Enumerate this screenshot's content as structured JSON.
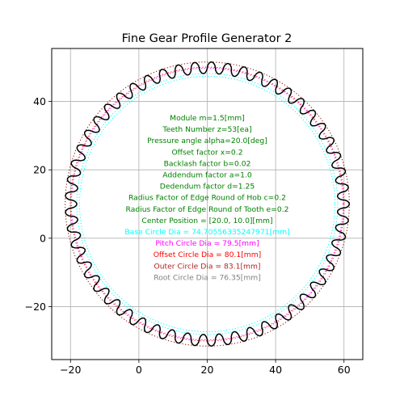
{
  "chart_data": {
    "type": "line",
    "title": "Fine Gear Profile Generator 2",
    "xlabel": "",
    "ylabel": "",
    "xlim": [
      -25.5,
      65.5
    ],
    "ylim": [
      -35.5,
      55.5
    ],
    "grid": true,
    "x_ticks": [
      -20,
      0,
      20,
      40,
      60
    ],
    "y_ticks": [
      -20,
      0,
      20,
      40
    ],
    "x_tick_labels": [
      "−20",
      "0",
      "20",
      "40",
      "60"
    ],
    "y_tick_labels": [
      "−20",
      "0",
      "20",
      "40"
    ],
    "gear": {
      "center": [
        20.0,
        10.0
      ],
      "module": 1.5,
      "teeth": 53,
      "base_circle_dia": 74.70556335247971,
      "pitch_circle_dia": 79.5,
      "offset_circle_dia": 80.1,
      "outer_circle_dia": 83.1,
      "root_circle_dia": 76.35
    },
    "circles": [
      {
        "name": "base",
        "dia": 74.70556335247971,
        "color": "#00ffff",
        "style": "dotted"
      },
      {
        "name": "pitch",
        "dia": 79.5,
        "color": "#ff00ff",
        "style": "dotted"
      },
      {
        "name": "offset",
        "dia": 80.1,
        "color": "#ff0000",
        "style": "dotted"
      },
      {
        "name": "outer",
        "dia": 83.1,
        "color": "#8b0000",
        "style": "dotted"
      },
      {
        "name": "root",
        "dia": 76.35,
        "color": "#00ffff",
        "style": "dotted"
      }
    ],
    "profile_color": "#000000",
    "annotations": [
      {
        "text": "Module m=1.5[mm]",
        "color": "#008000"
      },
      {
        "text": "Teeth Number z=53[ea]",
        "color": "#008000"
      },
      {
        "text": "Pressure angle alpha=20.0[deg]",
        "color": "#008000"
      },
      {
        "text": "Offset factor x=0.2",
        "color": "#008000"
      },
      {
        "text": "Backlash factor b=0.02",
        "color": "#008000"
      },
      {
        "text": "Addendum factor a=1.0",
        "color": "#008000"
      },
      {
        "text": "Dedendum factor d=1.25",
        "color": "#008000"
      },
      {
        "text": "Radius Factor of Edge Round of Hob c=0.2",
        "color": "#008000"
      },
      {
        "text": "Radius Factor of Edge Round of Tooth e=0.2",
        "color": "#008000"
      },
      {
        "text": "Center Position = [20.0, 10.0][mm]",
        "color": "#008000"
      },
      {
        "text": "Base Circle Dia = 74.70556335247971[mm]",
        "color": "#00ffff"
      },
      {
        "text": "Pitch Circle Dia = 79.5[mm]",
        "color": "#ff00ff"
      },
      {
        "text": "Offset Circle Dia = 80.1[mm]",
        "color": "#ff0000"
      },
      {
        "text": "Outer Circle Dia = 83.1[mm]",
        "color": "#b22222"
      },
      {
        "text": "Root Circle Dia = 76.35[mm]",
        "color": "#808080"
      }
    ]
  }
}
